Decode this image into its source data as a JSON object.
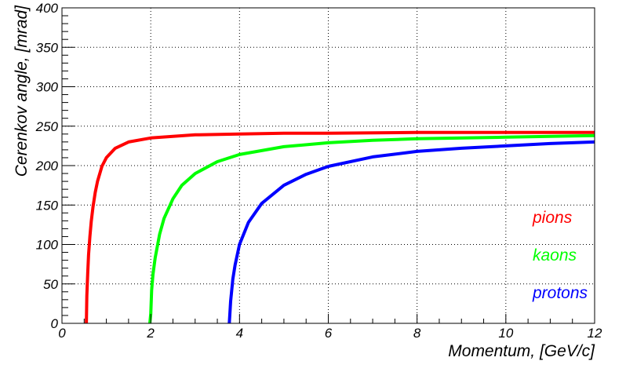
{
  "chart_data": {
    "type": "line",
    "title": "",
    "xlabel": "Momentum, [GeV/c]",
    "ylabel": "Cerenkov angle, [mrad]",
    "xlim": [
      0,
      12
    ],
    "ylim": [
      0,
      400
    ],
    "x_ticks": [
      0,
      2,
      4,
      6,
      8,
      10,
      12
    ],
    "y_ticks": [
      0,
      50,
      100,
      150,
      200,
      250,
      300,
      350,
      400
    ],
    "grid": true,
    "legend_placement": "right",
    "series": [
      {
        "name": "pions",
        "color": "#ff0000",
        "x": [
          0.55,
          0.56,
          0.58,
          0.6,
          0.63,
          0.66,
          0.7,
          0.75,
          0.8,
          0.9,
          1.0,
          1.2,
          1.5,
          2.0,
          2.5,
          3.0,
          4.0,
          5.0,
          6.0,
          8.0,
          10.0,
          12.0
        ],
        "y": [
          0,
          35,
          63,
          87,
          110,
          129,
          148,
          166,
          180,
          199,
          210,
          222,
          230,
          235,
          237,
          239,
          240,
          241,
          241,
          242,
          242,
          242
        ]
      },
      {
        "name": "kaons",
        "color": "#00ff00",
        "x": [
          1.98,
          2.0,
          2.02,
          2.05,
          2.1,
          2.2,
          2.3,
          2.5,
          2.7,
          3.0,
          3.5,
          4.0,
          5.0,
          6.0,
          7.0,
          8.0,
          10.0,
          12.0
        ],
        "y": [
          0,
          12,
          42,
          62,
          83,
          113,
          133,
          158,
          175,
          190,
          205,
          214,
          224,
          229,
          232,
          234,
          236,
          238
        ]
      },
      {
        "name": "protons",
        "color": "#0000ff",
        "x": [
          3.77,
          3.8,
          3.85,
          3.9,
          4.0,
          4.2,
          4.5,
          5.0,
          5.5,
          6.0,
          7.0,
          8.0,
          9.0,
          10.0,
          11.0,
          12.0
        ],
        "y": [
          0,
          28,
          56,
          74,
          100,
          128,
          152,
          175,
          189,
          199,
          211,
          218,
          222,
          225,
          228,
          230
        ]
      }
    ]
  }
}
